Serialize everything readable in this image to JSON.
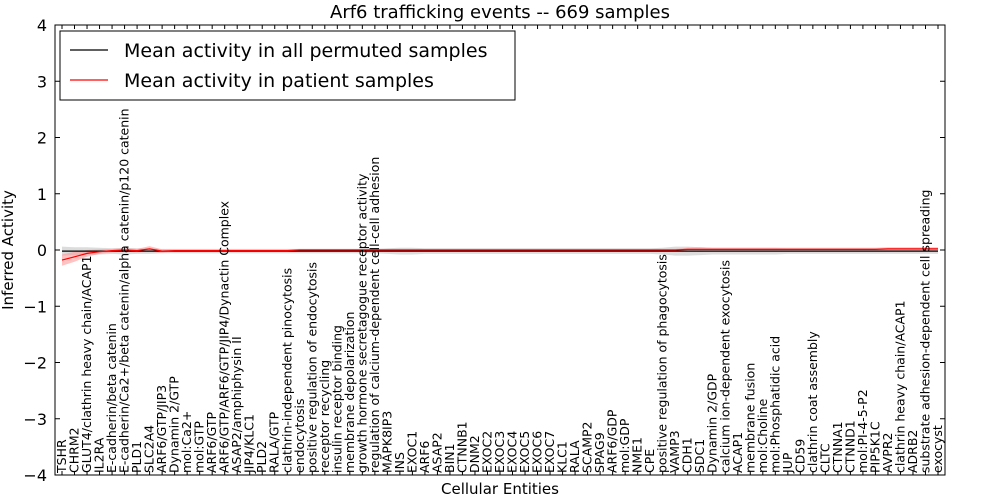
{
  "chart_data": {
    "type": "line",
    "title": "Arf6 trafficking events -- 669 samples",
    "xlabel": "Cellular Entities",
    "ylabel": "Inferred Activity",
    "ylim": [
      -4,
      4
    ],
    "yticks": [
      -4,
      -3,
      -2,
      -1,
      0,
      1,
      2,
      3,
      4
    ],
    "legend_position": "top-left",
    "colors": {
      "permuted": "#000000",
      "patient": "#ff0000",
      "permuted_band": "#bfbfbf",
      "patient_band": "#ff9999"
    },
    "categories": [
      "TSHR",
      "CHRM2",
      "GLUT4/clathrin heavy chain/ACAP1",
      "IL2RA",
      "E-cadherin/beta catenin",
      "E-cadherin/Ca2+/beta catenin/alpha catenin/p120 catenin",
      "PLD1",
      "SLC2A4",
      "ARF6/GTP/JIP3",
      "Dynamin 2/GTP",
      "mol:Ca2+",
      "mol:GTP",
      "ARF6/GTP",
      "ARF6/GTP/ARF6/GTP/JIP4/Dynactin Complex",
      "ASAP2/amphiphysin II",
      "JIP4/KLC1",
      "PLD2",
      "RALA/GTP",
      "clathrin-independent pinocytosis",
      "endocytosis",
      "positive regulation of endocytosis",
      "receptor recycling",
      "insulin receptor binding",
      "membrane depolarization",
      "growth hormone secretagogue receptor activity",
      "regulation of calcium-dependent cell-cell adhesion",
      "MAPK8IP3",
      "INS",
      "EXOC1",
      "ARF6",
      "ASAP2",
      "BIN1",
      "CTNNB1",
      "DNM2",
      "EXOC2",
      "EXOC3",
      "EXOC4",
      "EXOC5",
      "EXOC6",
      "EXOC7",
      "KLC1",
      "RALA",
      "SCAMP2",
      "SPAG9",
      "ARF6/GDP",
      "mol:GDP",
      "NME1",
      "CPE",
      "positive regulation of phagocytosis",
      "VAMP3",
      "CDH1",
      "SDC1",
      "Dynamin 2/GDP",
      "calcium ion-dependent exocytosis",
      "ACAP1",
      "membrane fusion",
      "mol:Choline",
      "mol:Phosphatidic acid",
      "JUP",
      "CD59",
      "clathrin coat assembly",
      "CLTC",
      "CTNNA1",
      "CTNND1",
      "mol:PI-4-5-P2",
      "PIP5K1C",
      "AVPR2",
      "clathrin heavy chain/ACAP1",
      "ADRB2",
      "substrate adhesion-dependent cell spreading",
      "exocyst"
    ],
    "series": [
      {
        "name": "Mean activity in all permuted samples",
        "values": [
          -0.02,
          -0.02,
          -0.02,
          -0.02,
          -0.02,
          -0.02,
          -0.02,
          -0.02,
          -0.02,
          -0.02,
          -0.02,
          -0.02,
          -0.02,
          -0.02,
          -0.02,
          -0.02,
          -0.02,
          -0.02,
          -0.02,
          -0.02,
          -0.02,
          -0.02,
          -0.02,
          -0.02,
          -0.02,
          -0.02,
          -0.02,
          -0.02,
          -0.02,
          -0.02,
          -0.02,
          -0.02,
          -0.02,
          -0.02,
          -0.02,
          -0.02,
          -0.02,
          -0.02,
          -0.02,
          -0.02,
          -0.02,
          -0.02,
          -0.02,
          -0.02,
          -0.02,
          -0.02,
          -0.02,
          -0.02,
          -0.02,
          -0.02,
          -0.02,
          -0.02,
          -0.02,
          -0.02,
          -0.02,
          -0.02,
          -0.02,
          -0.02,
          -0.02,
          -0.02,
          -0.02,
          -0.02,
          -0.02,
          -0.02,
          -0.02,
          -0.02,
          -0.02,
          -0.02,
          -0.02,
          -0.02,
          -0.02
        ],
        "band": [
          0.08,
          0.07,
          0.07,
          0.06,
          0.05,
          0.06,
          0.05,
          0.05,
          0.04,
          0.04,
          0.04,
          0.04,
          0.04,
          0.04,
          0.04,
          0.04,
          0.04,
          0.04,
          0.04,
          0.04,
          0.04,
          0.04,
          0.04,
          0.04,
          0.04,
          0.04,
          0.05,
          0.06,
          0.06,
          0.05,
          0.05,
          0.05,
          0.05,
          0.05,
          0.05,
          0.05,
          0.05,
          0.05,
          0.05,
          0.05,
          0.05,
          0.05,
          0.05,
          0.05,
          0.05,
          0.05,
          0.05,
          0.05,
          0.06,
          0.08,
          0.08,
          0.07,
          0.06,
          0.06,
          0.06,
          0.06,
          0.06,
          0.06,
          0.05,
          0.05,
          0.05,
          0.05,
          0.05,
          0.05,
          0.05,
          0.05,
          0.05,
          0.05,
          0.05,
          0.05,
          0.05
        ]
      },
      {
        "name": "Mean activity in patient samples",
        "values": [
          -0.18,
          -0.12,
          -0.06,
          -0.03,
          -0.01,
          0.0,
          -0.01,
          0.02,
          -0.02,
          -0.01,
          -0.01,
          -0.01,
          -0.01,
          -0.01,
          -0.01,
          -0.01,
          -0.01,
          -0.01,
          -0.01,
          0.0,
          0.0,
          0.0,
          0.0,
          0.0,
          0.0,
          0.0,
          0.0,
          0.0,
          0.0,
          0.0,
          0.0,
          0.0,
          0.0,
          0.0,
          0.0,
          0.0,
          0.0,
          0.0,
          0.0,
          0.0,
          0.0,
          0.0,
          0.0,
          0.0,
          0.0,
          0.0,
          0.0,
          0.0,
          0.0,
          0.0,
          0.01,
          0.01,
          0.01,
          0.01,
          0.01,
          0.01,
          0.01,
          0.01,
          0.01,
          0.01,
          0.01,
          0.01,
          0.01,
          0.01,
          0.01,
          0.01,
          0.02,
          0.02,
          0.02,
          0.02,
          0.02
        ],
        "band": [
          0.1,
          0.09,
          0.06,
          0.04,
          0.03,
          0.03,
          0.03,
          0.05,
          0.03,
          0.02,
          0.02,
          0.02,
          0.02,
          0.02,
          0.02,
          0.02,
          0.02,
          0.02,
          0.02,
          0.02,
          0.02,
          0.02,
          0.02,
          0.02,
          0.02,
          0.02,
          0.02,
          0.02,
          0.02,
          0.02,
          0.02,
          0.02,
          0.02,
          0.02,
          0.02,
          0.02,
          0.02,
          0.02,
          0.02,
          0.02,
          0.02,
          0.02,
          0.02,
          0.02,
          0.02,
          0.02,
          0.02,
          0.02,
          0.02,
          0.02,
          0.03,
          0.04,
          0.03,
          0.03,
          0.03,
          0.03,
          0.03,
          0.03,
          0.03,
          0.03,
          0.03,
          0.03,
          0.03,
          0.03,
          0.03,
          0.03,
          0.03,
          0.03,
          0.03,
          0.03,
          0.03
        ]
      }
    ]
  }
}
